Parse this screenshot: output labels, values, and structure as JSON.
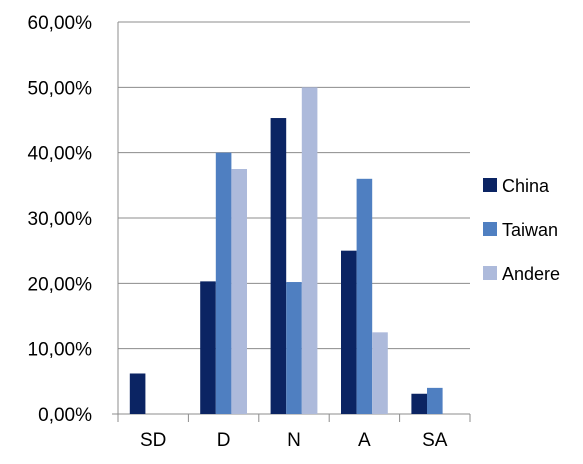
{
  "chart_data": {
    "type": "bar",
    "categories": [
      "SD",
      "D",
      "N",
      "A",
      "SA"
    ],
    "series": [
      {
        "name": "China",
        "color": "#0b2463",
        "values": [
          6.2,
          20.3,
          45.3,
          25.0,
          3.1
        ]
      },
      {
        "name": "Taiwan",
        "color": "#4f7fc1",
        "values": [
          0,
          40.0,
          20.2,
          36.0,
          4.0
        ]
      },
      {
        "name": "Andere",
        "color": "#adbadb",
        "values": [
          0,
          37.5,
          50.0,
          12.5,
          0
        ]
      }
    ],
    "y_ticks": [
      "0,00%",
      "10,00%",
      "20,00%",
      "30,00%",
      "40,00%",
      "50,00%",
      "60,00%"
    ],
    "ylim": [
      0,
      60
    ],
    "grid": "horizontal",
    "legend_position": "right"
  }
}
